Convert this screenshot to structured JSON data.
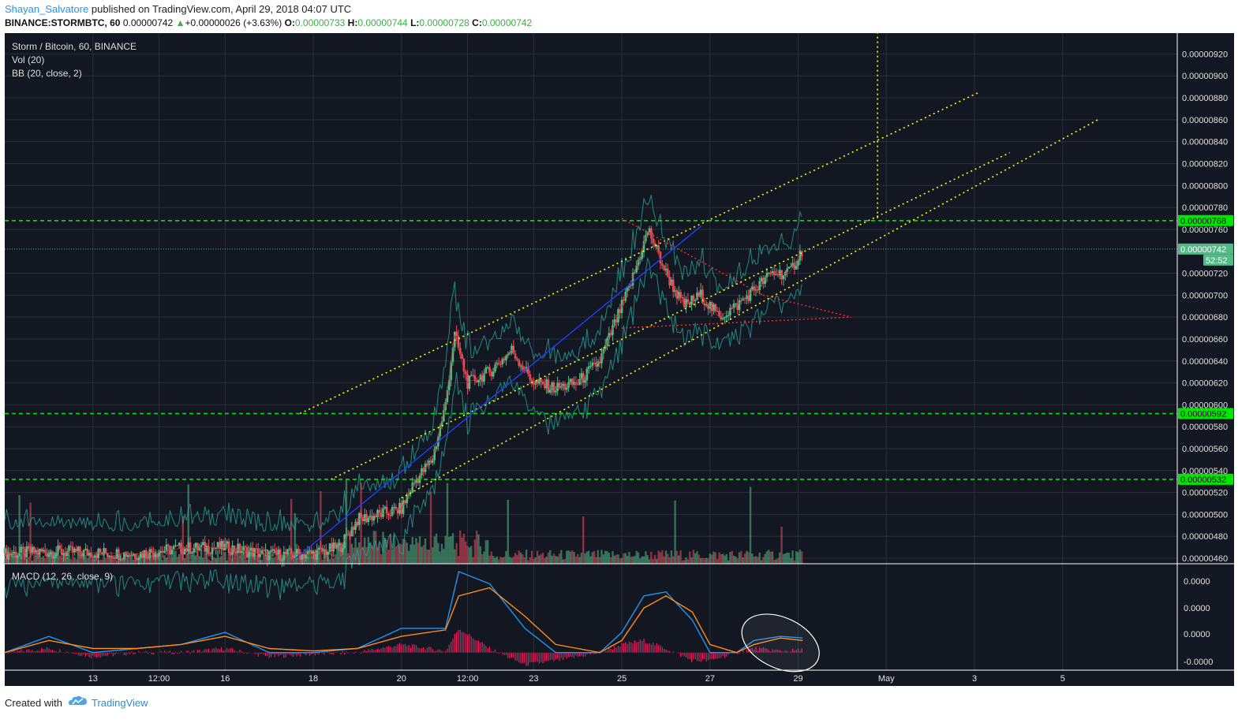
{
  "header": {
    "author": "Shayan_Salvatore",
    "published": "published on TradingView.com, April 29, 2018 04:07 UTC",
    "symbol": "BINANCE:STORMBTC, 60",
    "last": "0.00000742",
    "change": "+0.00000026 (+3.63%)",
    "open_label": "O:",
    "open": "0.00000733",
    "high_label": "H:",
    "high": "0.00000744",
    "low_label": "L:",
    "low": "0.00000728",
    "close_label": "C:",
    "close": "0.00000742"
  },
  "legend": {
    "title": "Storm / Bitcoin, 60, BINANCE",
    "vol": "Vol (20)",
    "bb": "BB (20, close, 2)",
    "macd": "MACD (12, 26, close, 9)"
  },
  "footer": {
    "created_with": "Created with",
    "brand": "TradingView"
  },
  "colors": {
    "background": "#131722",
    "grid": "#2a2e39",
    "up": "#53b987",
    "down": "#eb4d5c",
    "support_lines": "#00e600",
    "channel": "#ffff00",
    "triangle": "#ff2b2b",
    "trend": "#1e3fff",
    "macd": "#2196f3",
    "signal": "#ff8c1a",
    "histogram": "#e91e63"
  },
  "chart_data": {
    "type": "candlestick",
    "title": "Storm / Bitcoin, 60, BINANCE",
    "price_axis": {
      "ticks": [
        "0.00000920",
        "0.00000900",
        "0.00000880",
        "0.00000860",
        "0.00000840",
        "0.00000820",
        "0.00000800",
        "0.00000780",
        "0.00000760",
        "0.00000720",
        "0.00000700",
        "0.00000680",
        "0.00000660",
        "0.00000640",
        "0.00000620",
        "0.00000600",
        "0.00000580",
        "0.00000560",
        "0.00000540",
        "0.00000520",
        "0.00000500",
        "0.00000480",
        "0.00000460"
      ],
      "range": [
        4.55e-06,
        9.39e-06
      ]
    },
    "markers": [
      {
        "label": "0.00000768",
        "value": 7.68e-06,
        "kind": "level"
      },
      {
        "label": "0.00000742",
        "value": 7.42e-06,
        "kind": "last"
      },
      {
        "label": "52:52",
        "value": 7.32e-06,
        "kind": "countdown"
      },
      {
        "label": "0.00000592",
        "value": 5.92e-06,
        "kind": "level"
      },
      {
        "label": "0.00000532",
        "value": 5.32e-06,
        "kind": "level"
      }
    ],
    "horizontal_levels": [
      7.68e-06,
      5.92e-06,
      5.32e-06
    ],
    "time_axis": {
      "ticks": [
        "13",
        "12:00",
        "16",
        "18",
        "20",
        "12:00",
        "23",
        "25",
        "27",
        "29",
        "May",
        "3",
        "5"
      ],
      "tick_days": [
        13,
        14.5,
        16,
        18,
        20,
        21.5,
        23,
        25,
        27,
        29,
        31,
        33,
        35
      ],
      "range_days": [
        11.0,
        37.6
      ]
    },
    "series_close_path": [
      [
        11.0,
        4.64e-06
      ],
      [
        12.0,
        4.66e-06
      ],
      [
        13.0,
        4.65e-06
      ],
      [
        14.0,
        4.64e-06
      ],
      [
        15.0,
        4.69e-06
      ],
      [
        16.0,
        4.7e-06
      ],
      [
        17.0,
        4.63e-06
      ],
      [
        18.0,
        4.64e-06
      ],
      [
        18.6,
        4.7e-06
      ],
      [
        19.0,
        4.95e-06
      ],
      [
        19.5,
        5e-06
      ],
      [
        20.0,
        5.05e-06
      ],
      [
        20.3,
        5.3e-06
      ],
      [
        20.7,
        5.5e-06
      ],
      [
        21.0,
        6e-06
      ],
      [
        21.2,
        6.65e-06
      ],
      [
        21.5,
        6.2e-06
      ],
      [
        22.0,
        6.3e-06
      ],
      [
        22.5,
        6.5e-06
      ],
      [
        23.0,
        6.2e-06
      ],
      [
        23.5,
        6.15e-06
      ],
      [
        24.0,
        6.2e-06
      ],
      [
        24.5,
        6.4e-06
      ],
      [
        24.9,
        6.8e-06
      ],
      [
        25.2,
        7.1e-06
      ],
      [
        25.6,
        7.6e-06
      ],
      [
        26.0,
        7.2e-06
      ],
      [
        26.4,
        6.9e-06
      ],
      [
        26.8,
        7e-06
      ],
      [
        27.2,
        6.8e-06
      ],
      [
        27.6,
        6.9e-06
      ],
      [
        28.0,
        7.05e-06
      ],
      [
        28.4,
        7.2e-06
      ],
      [
        28.8,
        7.2e-06
      ],
      [
        29.1,
        7.42e-06
      ]
    ],
    "channel_lines": [
      {
        "from": [
          17.7,
          5.92e-06
        ],
        "to": [
          33.1,
          8.85e-06
        ]
      },
      {
        "from": [
          18.4,
          5.32e-06
        ],
        "to": [
          33.8,
          8.3e-06
        ]
      },
      {
        "from": [
          20.0,
          5.15e-06
        ],
        "to": [
          35.8,
          8.6e-06
        ]
      }
    ],
    "vertical_target": {
      "day": 30.8,
      "from": 7.7e-06,
      "to": 9.4e-06
    },
    "triangle_lines": [
      {
        "from": [
          25.0,
          7.7e-06
        ],
        "to": [
          28.2,
          7e-06
        ]
      },
      {
        "from": [
          25.0,
          6.7e-06
        ],
        "to": [
          30.2,
          6.8e-06
        ]
      },
      {
        "from": [
          28.2,
          7e-06
        ],
        "to": [
          30.2,
          6.8e-06
        ]
      }
    ],
    "trend_line": {
      "from": [
        17.6,
        4.6e-06
      ],
      "to": [
        26.8,
        7.63e-06
      ]
    },
    "macd_panel": {
      "ticks": [
        "0.0000",
        "0.0000",
        "0.0000",
        "-0.0000"
      ],
      "range": [
        -0.12,
        1.0
      ],
      "macd": [
        [
          11.0,
          0.0
        ],
        [
          12.0,
          0.2
        ],
        [
          13.0,
          0.0
        ],
        [
          14.0,
          0.05
        ],
        [
          15.0,
          0.1
        ],
        [
          16.0,
          0.25
        ],
        [
          17.0,
          0.0
        ],
        [
          18.0,
          0.0
        ],
        [
          19.0,
          0.05
        ],
        [
          20.0,
          0.3
        ],
        [
          21.0,
          0.3
        ],
        [
          21.3,
          1.0
        ],
        [
          22.0,
          0.85
        ],
        [
          22.8,
          0.3
        ],
        [
          23.5,
          0.0
        ],
        [
          24.5,
          0.0
        ],
        [
          25.0,
          0.25
        ],
        [
          25.5,
          0.7
        ],
        [
          26.0,
          0.75
        ],
        [
          26.6,
          0.4
        ],
        [
          27.0,
          0.0
        ],
        [
          27.6,
          0.0
        ],
        [
          28.0,
          0.15
        ],
        [
          28.6,
          0.2
        ],
        [
          29.1,
          0.18
        ]
      ],
      "signal": [
        [
          11.0,
          0.0
        ],
        [
          12.0,
          0.15
        ],
        [
          13.0,
          0.05
        ],
        [
          14.0,
          0.05
        ],
        [
          15.0,
          0.1
        ],
        [
          16.0,
          0.2
        ],
        [
          17.0,
          0.05
        ],
        [
          18.0,
          0.02
        ],
        [
          19.0,
          0.05
        ],
        [
          20.0,
          0.2
        ],
        [
          21.0,
          0.28
        ],
        [
          21.3,
          0.7
        ],
        [
          22.0,
          0.8
        ],
        [
          22.8,
          0.45
        ],
        [
          23.5,
          0.1
        ],
        [
          24.5,
          0.0
        ],
        [
          25.0,
          0.15
        ],
        [
          25.5,
          0.55
        ],
        [
          26.0,
          0.7
        ],
        [
          26.6,
          0.5
        ],
        [
          27.0,
          0.1
        ],
        [
          27.6,
          0.0
        ],
        [
          28.0,
          0.1
        ],
        [
          28.6,
          0.18
        ],
        [
          29.1,
          0.15
        ]
      ]
    }
  }
}
